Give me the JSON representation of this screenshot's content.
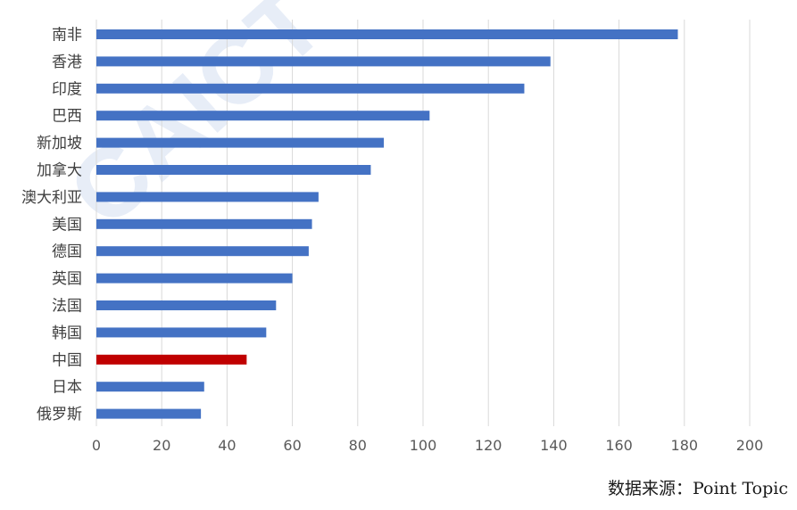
{
  "chart_data": {
    "type": "bar",
    "orientation": "horizontal",
    "categories": [
      "南非",
      "香港",
      "印度",
      "巴西",
      "新加坡",
      "加拿大",
      "澳大利亚",
      "美国",
      "德国",
      "英国",
      "法国",
      "韩国",
      "中国",
      "日本",
      "俄罗斯"
    ],
    "values": [
      178,
      139,
      131,
      102,
      88,
      84,
      68,
      66,
      65,
      60,
      55,
      52,
      46,
      33,
      32
    ],
    "xlim": [
      0,
      200
    ],
    "ticks": [
      "0",
      "20",
      "40",
      "60",
      "80",
      "100",
      "120",
      "140",
      "160",
      "180",
      "200"
    ],
    "grid": "vertical",
    "colors": {
      "default": "#4472C4",
      "highlight": "#C00000"
    },
    "highlight_category": "中国"
  },
  "watermark": "CAICT",
  "source_note": "数据来源：Point Topic"
}
